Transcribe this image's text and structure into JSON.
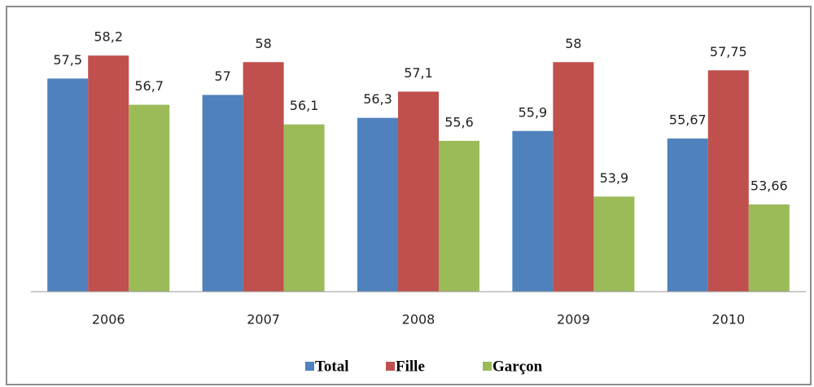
{
  "chart_data": {
    "type": "bar",
    "categories": [
      "2006",
      "2007",
      "2008",
      "2009",
      "2010"
    ],
    "series": [
      {
        "name": "Total",
        "color": "#4f81bd",
        "values": [
          57.5,
          57,
          56.3,
          55.9,
          55.67
        ],
        "value_labels": [
          "57,5",
          "57",
          "56,3",
          "55,9",
          "55,67"
        ]
      },
      {
        "name": "Fille",
        "color": "#c0504d",
        "values": [
          58.2,
          58,
          57.1,
          58,
          57.75
        ],
        "value_labels": [
          "58,2",
          "58",
          "57,1",
          "58",
          "57,75"
        ]
      },
      {
        "name": "Garçon",
        "color": "#9bbb59",
        "values": [
          56.7,
          56.1,
          55.6,
          53.9,
          53.66
        ],
        "value_labels": [
          "56,7",
          "56,1",
          "55,6",
          "53,9",
          "53,66"
        ]
      }
    ],
    "ylim": [
      51,
      59
    ],
    "legend": "bottom"
  }
}
